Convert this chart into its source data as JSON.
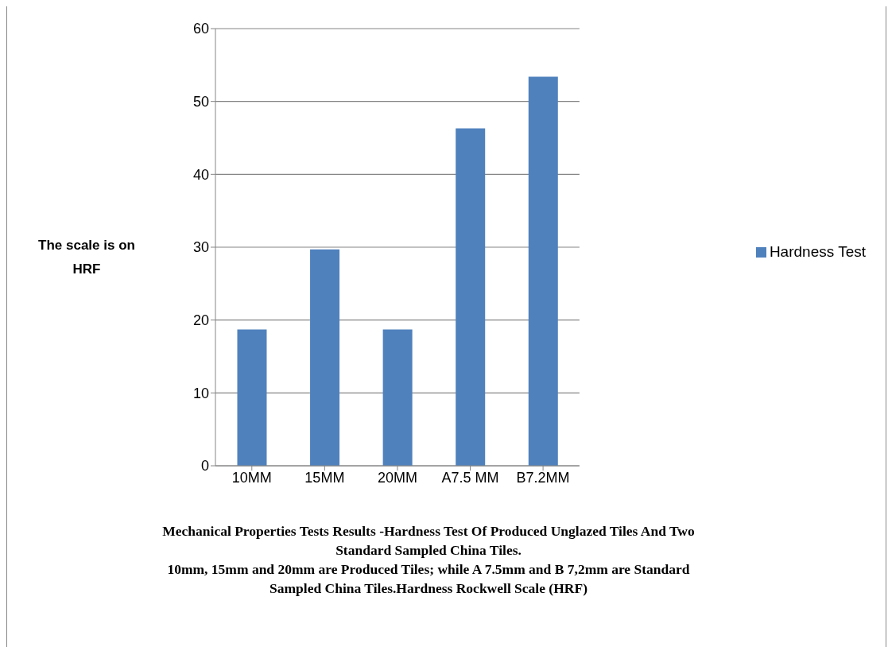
{
  "chart_data": {
    "type": "bar",
    "title": "Mechanical Properties Tests Results -Hardness Test Of  Produced Unglazed Tiles And Two Standard Sampled China Tiles.",
    "subtitle": "10mm, 15mm and 20mm are Produced Tiles; while A 7.5mm and B 7,2mm are Standard Sampled China Tiles.Hardness Rockwell Scale (HRF)",
    "ylabel": "The scale is on HRF",
    "categories": [
      "10MM",
      "15MM",
      "20MM",
      "A7.5 MM",
      "B7.2MM"
    ],
    "series": [
      {
        "name": "Hardness Test",
        "color": "#4f81bd",
        "values": [
          18.7,
          29.7,
          18.7,
          46.3,
          53.4
        ]
      }
    ],
    "ylim": [
      0,
      60
    ],
    "yticks": [
      0,
      10,
      20,
      30,
      40,
      50,
      60
    ],
    "grid": "y",
    "legend": "right"
  }
}
